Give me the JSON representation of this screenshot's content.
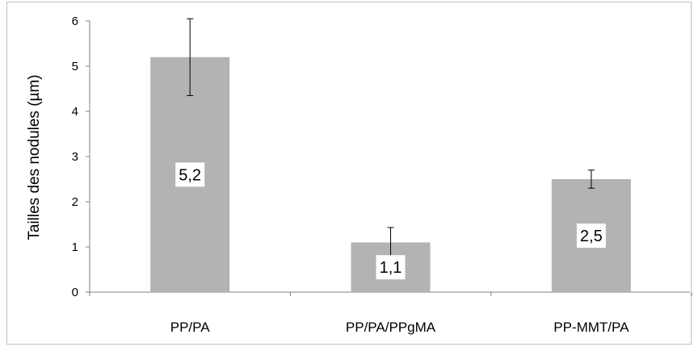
{
  "chart_data": {
    "type": "bar",
    "categories": [
      "PP/PA",
      "PP/PA/PPgMA",
      "PP-MMT/PA"
    ],
    "series": [
      {
        "values": [
          5.2,
          1.1,
          2.5
        ],
        "error": [
          0.85,
          0.33,
          0.2
        ]
      }
    ],
    "data_labels": [
      "5,2",
      "1,1",
      "2,5"
    ],
    "title": "",
    "xlabel": "",
    "ylabel": "Tailles des nodules (µm)",
    "ylim": [
      0,
      6
    ],
    "yticks": [
      0,
      1,
      2,
      3,
      4,
      5,
      6
    ],
    "grid": false,
    "legend": "none",
    "bar_color": "#b3b3b3",
    "axis_color": "#808080"
  }
}
